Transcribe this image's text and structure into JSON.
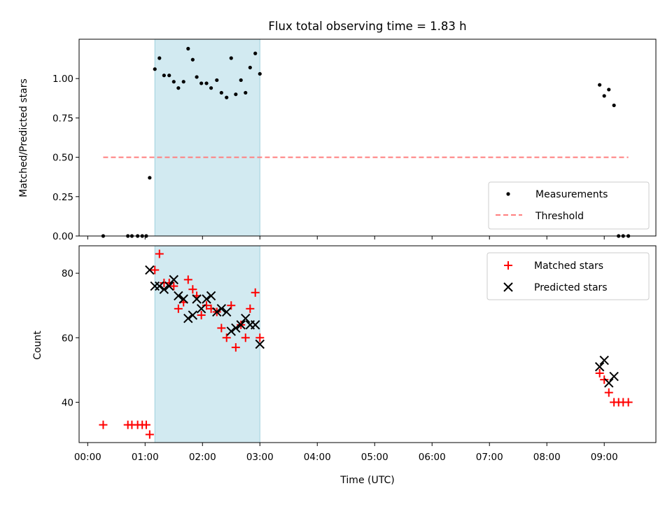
{
  "chart_data": [
    {
      "type": "scatter",
      "title": "Flux total observing time = 1.83 h",
      "xlabel": "",
      "ylabel": "Matched/Predicted stars",
      "ylim": [
        0,
        1.25
      ],
      "xlim_hours": [
        -0.15,
        9.9
      ],
      "yticks": [
        "0.00",
        "0.25",
        "0.50",
        "0.75",
        "1.00"
      ],
      "shaded_span_hours": [
        1.17,
        3.0
      ],
      "shaded_color": "#add8e6",
      "legend_position": "lower-right",
      "series": [
        {
          "name": "Measurements",
          "marker": "dot",
          "color": "#000000",
          "points": [
            [
              0.27,
              0.0
            ],
            [
              0.7,
              0.0
            ],
            [
              0.77,
              0.0
            ],
            [
              0.87,
              0.0
            ],
            [
              0.95,
              0.0
            ],
            [
              1.02,
              0.0
            ],
            [
              1.08,
              0.37
            ],
            [
              1.17,
              1.06
            ],
            [
              1.25,
              1.13
            ],
            [
              1.33,
              1.02
            ],
            [
              1.42,
              1.02
            ],
            [
              1.5,
              0.98
            ],
            [
              1.58,
              0.94
            ],
            [
              1.67,
              0.98
            ],
            [
              1.75,
              1.19
            ],
            [
              1.83,
              1.12
            ],
            [
              1.9,
              1.01
            ],
            [
              1.98,
              0.97
            ],
            [
              2.07,
              0.97
            ],
            [
              2.15,
              0.94
            ],
            [
              2.25,
              0.99
            ],
            [
              2.33,
              0.91
            ],
            [
              2.42,
              0.88
            ],
            [
              2.5,
              1.13
            ],
            [
              2.58,
              0.9
            ],
            [
              2.67,
              0.99
            ],
            [
              2.75,
              0.91
            ],
            [
              2.83,
              1.07
            ],
            [
              2.92,
              1.16
            ],
            [
              3.0,
              1.03
            ],
            [
              8.92,
              0.96
            ],
            [
              9.0,
              0.89
            ],
            [
              9.08,
              0.93
            ],
            [
              9.17,
              0.83
            ],
            [
              9.25,
              0.0
            ],
            [
              9.33,
              0.0
            ],
            [
              9.42,
              0.0
            ]
          ]
        },
        {
          "name": "Threshold",
          "marker": "dashed-line",
          "color": "#ff7f7f",
          "points": [
            [
              0.27,
              0.5
            ],
            [
              9.42,
              0.5
            ]
          ]
        }
      ]
    },
    {
      "type": "scatter",
      "title": "",
      "xlabel": "Time (UTC)",
      "ylabel": "Count",
      "ylim": [
        27.5,
        88.5
      ],
      "xlim_hours": [
        -0.15,
        9.9
      ],
      "yticks": [
        "40",
        "60",
        "80"
      ],
      "xticks": [
        "00:00",
        "01:00",
        "02:00",
        "03:00",
        "04:00",
        "05:00",
        "06:00",
        "07:00",
        "08:00",
        "09:00"
      ],
      "shaded_span_hours": [
        1.17,
        3.0
      ],
      "shaded_color": "#add8e6",
      "legend_position": "upper-right",
      "series": [
        {
          "name": "Matched stars",
          "marker": "plus",
          "color": "#ff0000",
          "points": [
            [
              0.27,
              33
            ],
            [
              0.7,
              33
            ],
            [
              0.77,
              33
            ],
            [
              0.87,
              33
            ],
            [
              0.95,
              33
            ],
            [
              1.02,
              33
            ],
            [
              1.08,
              30
            ],
            [
              1.17,
              81
            ],
            [
              1.25,
              86
            ],
            [
              1.33,
              77
            ],
            [
              1.42,
              77
            ],
            [
              1.5,
              76
            ],
            [
              1.58,
              69
            ],
            [
              1.67,
              71
            ],
            [
              1.75,
              78
            ],
            [
              1.83,
              75
            ],
            [
              1.9,
              73
            ],
            [
              1.98,
              67
            ],
            [
              2.07,
              70
            ],
            [
              2.15,
              69
            ],
            [
              2.25,
              68
            ],
            [
              2.33,
              63
            ],
            [
              2.42,
              60
            ],
            [
              2.5,
              70
            ],
            [
              2.58,
              57
            ],
            [
              2.67,
              64
            ],
            [
              2.75,
              60
            ],
            [
              2.83,
              69
            ],
            [
              2.92,
              74
            ],
            [
              3.0,
              60
            ],
            [
              8.92,
              49
            ],
            [
              9.0,
              47
            ],
            [
              9.08,
              43
            ],
            [
              9.17,
              40
            ],
            [
              9.25,
              40
            ],
            [
              9.33,
              40
            ],
            [
              9.42,
              40
            ]
          ]
        },
        {
          "name": "Predicted stars",
          "marker": "x",
          "color": "#000000",
          "points": [
            [
              1.08,
              81
            ],
            [
              1.17,
              76
            ],
            [
              1.25,
              76
            ],
            [
              1.33,
              75
            ],
            [
              1.42,
              76
            ],
            [
              1.5,
              78
            ],
            [
              1.58,
              73
            ],
            [
              1.67,
              72
            ],
            [
              1.75,
              66
            ],
            [
              1.83,
              67
            ],
            [
              1.9,
              72
            ],
            [
              1.98,
              69
            ],
            [
              2.07,
              72
            ],
            [
              2.15,
              73
            ],
            [
              2.25,
              68
            ],
            [
              2.33,
              69
            ],
            [
              2.42,
              68
            ],
            [
              2.5,
              62
            ],
            [
              2.58,
              63
            ],
            [
              2.67,
              64
            ],
            [
              2.75,
              66
            ],
            [
              2.83,
              64
            ],
            [
              2.92,
              64
            ],
            [
              3.0,
              58
            ],
            [
              8.92,
              51
            ],
            [
              9.0,
              53
            ],
            [
              9.08,
              46
            ],
            [
              9.17,
              48
            ]
          ]
        }
      ]
    }
  ]
}
